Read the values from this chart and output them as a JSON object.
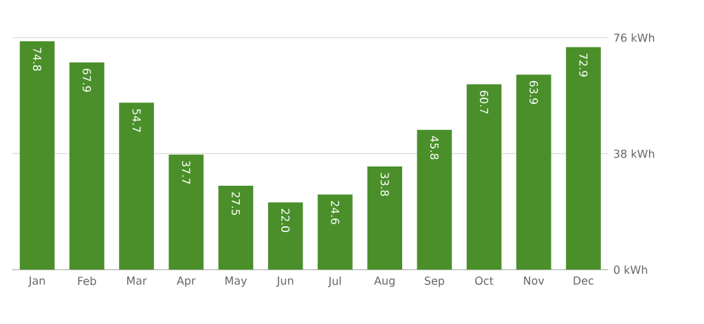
{
  "chart_data": {
    "type": "bar",
    "categories": [
      "Jan",
      "Feb",
      "Mar",
      "Apr",
      "May",
      "Jun",
      "Jul",
      "Aug",
      "Sep",
      "Oct",
      "Nov",
      "Dec"
    ],
    "values": [
      74.8,
      67.9,
      54.7,
      37.7,
      27.5,
      22.0,
      24.6,
      33.8,
      45.8,
      60.7,
      63.9,
      72.9
    ],
    "value_labels": [
      "74.8",
      "67.9",
      "54.7",
      "37.7",
      "27.5",
      "22.0",
      "24.6",
      "33.8",
      "45.8",
      "60.7",
      "63.9",
      "72.9"
    ],
    "color": "#4a8f2a",
    "ylim": [
      0,
      76
    ],
    "yticks": [
      {
        "value": 0,
        "label": "0 kWh"
      },
      {
        "value": 38,
        "label": "38 kWh"
      },
      {
        "value": 76,
        "label": "76 kWh"
      }
    ],
    "grid": "y"
  }
}
